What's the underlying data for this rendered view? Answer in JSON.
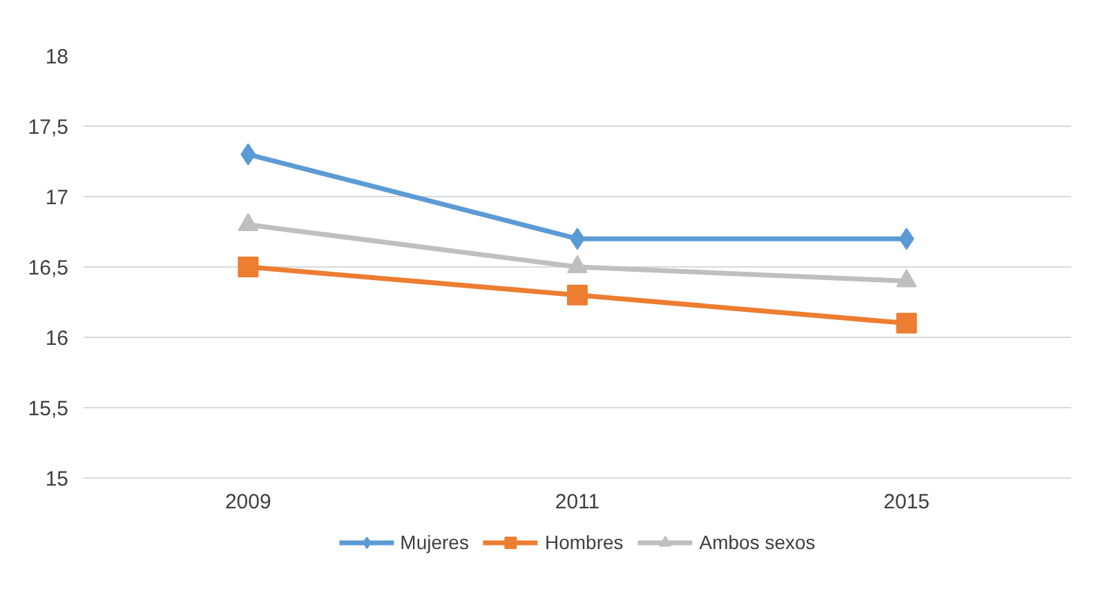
{
  "chart_data": {
    "type": "line",
    "categories": [
      "2009",
      "2011",
      "2015"
    ],
    "series": [
      {
        "name": "Mujeres",
        "color": "#5b9bd5",
        "marker": "diamond",
        "values": [
          17.3,
          16.7,
          16.7
        ]
      },
      {
        "name": "Hombres",
        "color": "#ed7d31",
        "marker": "square",
        "values": [
          16.5,
          16.3,
          16.1
        ]
      },
      {
        "name": "Ambos sexos",
        "color": "#bfbfbf",
        "marker": "triangle",
        "values": [
          16.8,
          16.5,
          16.4
        ]
      }
    ],
    "ylim": [
      15,
      18
    ],
    "yticks": [
      15,
      {
        "value": 15.5,
        "label": "15,5"
      },
      16,
      {
        "value": 16.5,
        "label": "16,5"
      },
      17,
      {
        "value": 17.5,
        "label": "17,5"
      },
      18
    ],
    "grid": "y",
    "legend": "bottom",
    "line_style": "solid"
  }
}
